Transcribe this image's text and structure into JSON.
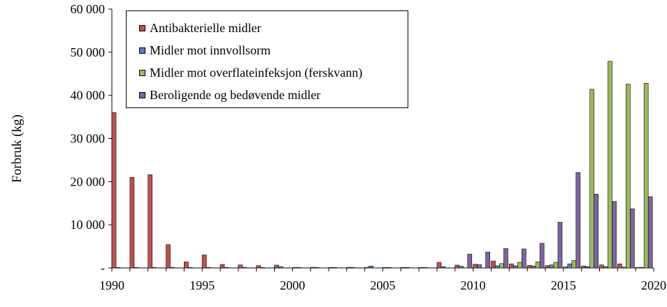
{
  "chart_data": {
    "type": "bar",
    "title": "",
    "xlabel": "",
    "ylabel": "Forbruk (kg)",
    "ylim": [
      0,
      60000
    ],
    "y_ticks": [
      0,
      10000,
      20000,
      30000,
      40000,
      50000,
      60000
    ],
    "y_tick_labels": [
      "-",
      "10 000",
      "20 000",
      "30 000",
      "40 000",
      "50 000",
      "60 000"
    ],
    "x_tick_labels": [
      "1990",
      "1995",
      "2000",
      "2005",
      "2010",
      "2015",
      "2020"
    ],
    "categories": [
      "1990",
      "1991",
      "1992",
      "1993",
      "1994",
      "1995",
      "1996",
      "1997",
      "1998",
      "1999",
      "2000",
      "2001",
      "2002",
      "2003",
      "2004",
      "2005",
      "2006",
      "2007",
      "2008",
      "2009",
      "2010",
      "2011",
      "2012",
      "2013",
      "2014",
      "2015",
      "2016",
      "2017",
      "2018",
      "2019"
    ],
    "legend_position": "top-left",
    "series": [
      {
        "name": "Antibakterielle midler",
        "color": "#c0504d",
        "values": [
          36000,
          21000,
          21600,
          5400,
          1400,
          3000,
          800,
          700,
          550,
          650,
          100,
          150,
          100,
          150,
          100,
          100,
          100,
          100,
          1300,
          650,
          850,
          1600,
          950,
          600,
          550,
          250,
          450,
          700,
          950,
          100
        ]
      },
      {
        "name": "Midler mot innvollsorm",
        "color": "#4f81bd",
        "values": [
          100,
          100,
          100,
          100,
          100,
          100,
          100,
          100,
          100,
          300,
          100,
          100,
          100,
          100,
          450,
          100,
          100,
          100,
          300,
          400,
          750,
          500,
          500,
          450,
          700,
          950,
          300,
          300,
          200,
          100
        ]
      },
      {
        "name": "Midler mot overflateinfeksjon (ferskvann)",
        "color": "#9bbb59",
        "values": [
          0,
          0,
          0,
          0,
          0,
          0,
          0,
          0,
          0,
          0,
          0,
          0,
          0,
          0,
          0,
          0,
          0,
          0,
          0,
          0,
          0,
          1000,
          1300,
          1400,
          1300,
          1700,
          41400,
          47900,
          42600,
          42800
        ]
      },
      {
        "name": "Beroligende og bedøvende midler",
        "color": "#8064a2",
        "values": [
          0,
          0,
          0,
          0,
          0,
          0,
          0,
          0,
          0,
          0,
          0,
          0,
          0,
          0,
          0,
          0,
          0,
          0,
          0,
          3200,
          3700,
          4500,
          4400,
          5700,
          10600,
          22100,
          17100,
          15400,
          13700,
          16500
        ]
      }
    ]
  }
}
